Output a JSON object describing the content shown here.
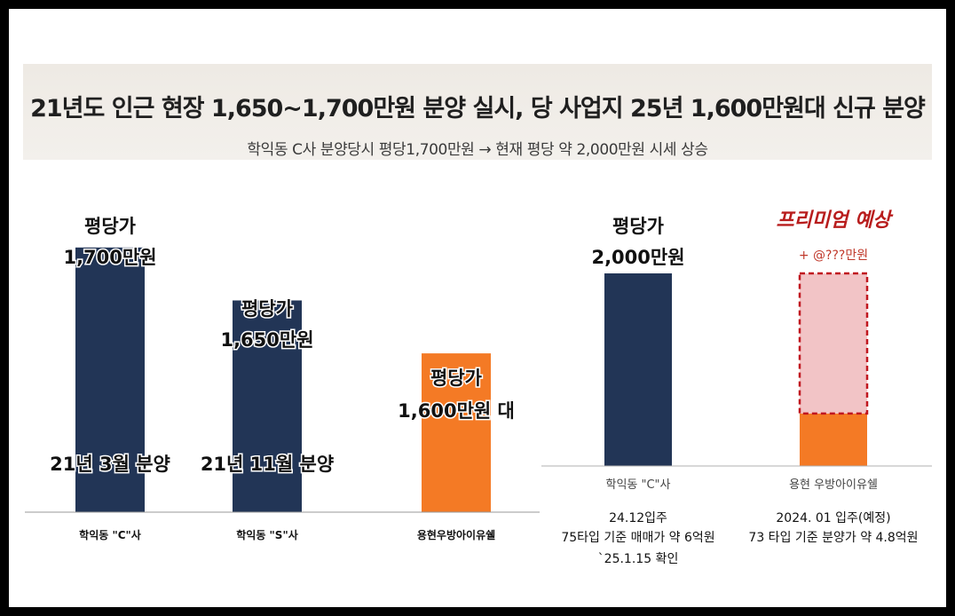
{
  "header": {
    "title": "21년도 인근 현장 1,650~1,700만원 분양 실시, 당 사업지 25년 1,600만원대 신규 분양",
    "subtitle": "학익동 C사 분양당시  평당1,700만원 → 현재 평당 약 2,000만원 시세 상승"
  },
  "colors": {
    "navy": "#223556",
    "orange": "#f47a25",
    "premium_fill": "#f2c4c6",
    "premium_border": "#c0161f"
  },
  "chart_data": [
    {
      "type": "bar",
      "categories": [
        "학익동 \"C\"사",
        "학익동 \"S\"사",
        "용현우방아이유쉘"
      ],
      "values": [
        1700,
        1650,
        1600
      ],
      "units": "만원 (평당가)",
      "value_labels": [
        [
          "평당가",
          "1,700만원"
        ],
        [
          "평당가",
          "1,650만원"
        ],
        [
          "평당가",
          "1,600만원 대"
        ]
      ],
      "bar_notes": [
        "21년 3월 분양",
        "21년 11월 분양",
        ""
      ],
      "bar_colors": [
        "#223556",
        "#223556",
        "#f47a25"
      ],
      "ylim": [
        1450,
        1720
      ]
    },
    {
      "type": "bar",
      "categories": [
        "학익동 \"C\"사",
        "용현 우방아이유쉘"
      ],
      "values": [
        2000,
        1600
      ],
      "units": "만원 (평당가)",
      "value_labels": [
        [
          "평당가",
          "2,000만원"
        ]
      ],
      "premium": {
        "title": "프리미엄 예상",
        "amount_label": "+ @???만원",
        "top_value": 2000
      },
      "bar_colors": [
        "#223556",
        "#f47a25"
      ],
      "notes": [
        [
          "24.12입주",
          "75타입 기준 매매가 약 6억원",
          "`25.1.15 확인"
        ],
        [
          "2024. 01 입주(예정)",
          "73 타입 기준 분양가 약 4.8억원"
        ]
      ],
      "ylim": [
        1450,
        2000
      ]
    }
  ]
}
